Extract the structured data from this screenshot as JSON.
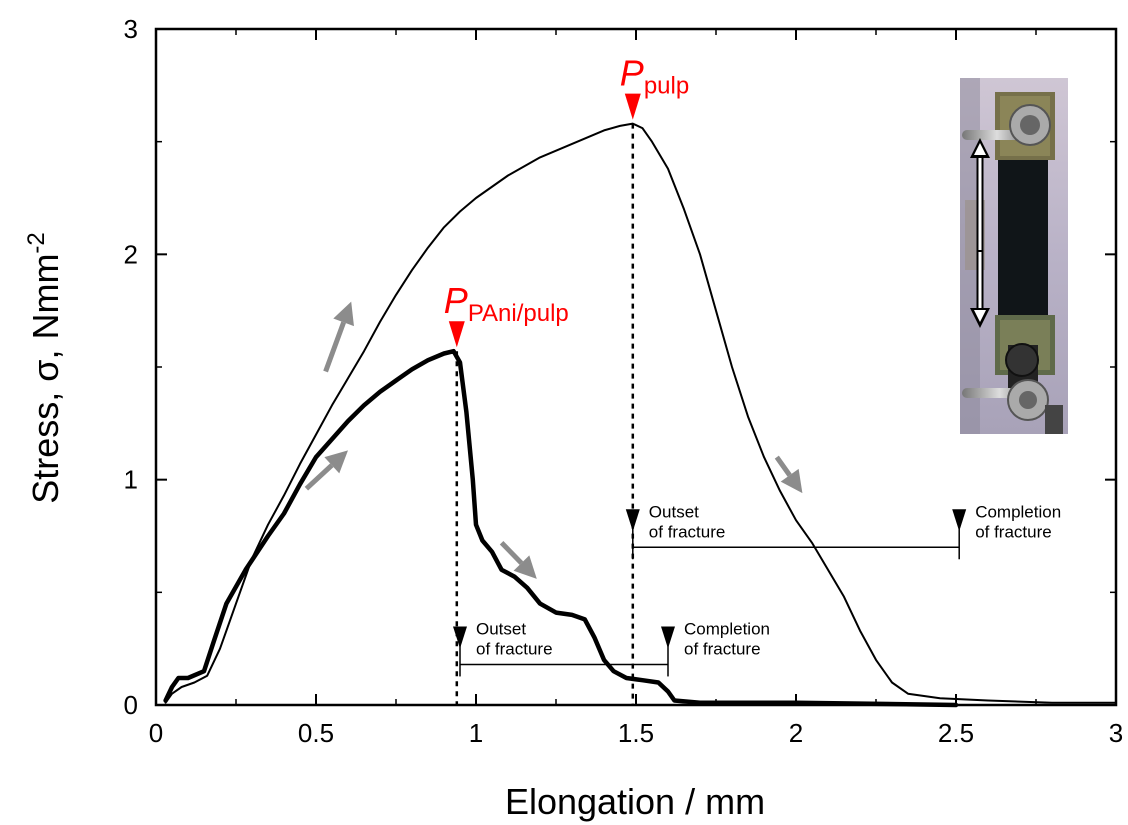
{
  "chart_data": {
    "type": "line",
    "xlabel": "Elongation / mm",
    "ylabel": {
      "prefix": "Stress, ",
      "symbol": "σ",
      "suffix": ", Nmm",
      "exponent": "-2"
    },
    "xlim": [
      0,
      3
    ],
    "ylim": [
      0,
      3
    ],
    "x_ticks": [
      "0",
      "0.5",
      "1",
      "1.5",
      "2",
      "2.5",
      "3"
    ],
    "y_ticks": [
      "0",
      "1",
      "2",
      "3"
    ],
    "grid": false,
    "legend": "none",
    "series": [
      {
        "id": "pulp",
        "color": "#000000",
        "points": [
          [
            0.03,
            0.01
          ],
          [
            0.05,
            0.05
          ],
          [
            0.08,
            0.08
          ],
          [
            0.12,
            0.1
          ],
          [
            0.16,
            0.13
          ],
          [
            0.2,
            0.25
          ],
          [
            0.25,
            0.45
          ],
          [
            0.3,
            0.65
          ],
          [
            0.35,
            0.8
          ],
          [
            0.4,
            0.93
          ],
          [
            0.45,
            1.07
          ],
          [
            0.5,
            1.2
          ],
          [
            0.55,
            1.33
          ],
          [
            0.6,
            1.45
          ],
          [
            0.65,
            1.57
          ],
          [
            0.7,
            1.7
          ],
          [
            0.75,
            1.82
          ],
          [
            0.8,
            1.93
          ],
          [
            0.85,
            2.03
          ],
          [
            0.9,
            2.12
          ],
          [
            0.95,
            2.19
          ],
          [
            1.0,
            2.25
          ],
          [
            1.1,
            2.35
          ],
          [
            1.2,
            2.43
          ],
          [
            1.3,
            2.49
          ],
          [
            1.4,
            2.55
          ],
          [
            1.45,
            2.57
          ],
          [
            1.49,
            2.58
          ],
          [
            1.52,
            2.56
          ],
          [
            1.55,
            2.5
          ],
          [
            1.6,
            2.38
          ],
          [
            1.65,
            2.2
          ],
          [
            1.7,
            2.0
          ],
          [
            1.75,
            1.75
          ],
          [
            1.8,
            1.5
          ],
          [
            1.85,
            1.28
          ],
          [
            1.9,
            1.1
          ],
          [
            1.95,
            0.95
          ],
          [
            2.0,
            0.82
          ],
          [
            2.05,
            0.72
          ],
          [
            2.1,
            0.6
          ],
          [
            2.15,
            0.48
          ],
          [
            2.2,
            0.33
          ],
          [
            2.25,
            0.2
          ],
          [
            2.3,
            0.1
          ],
          [
            2.35,
            0.05
          ],
          [
            2.45,
            0.03
          ],
          [
            2.6,
            0.02
          ],
          [
            2.8,
            0.01
          ],
          [
            3.0,
            0.01
          ]
        ]
      },
      {
        "id": "pani-pulp",
        "color": "#000000",
        "points": [
          [
            0.03,
            0.02
          ],
          [
            0.05,
            0.08
          ],
          [
            0.07,
            0.12
          ],
          [
            0.1,
            0.12
          ],
          [
            0.15,
            0.15
          ],
          [
            0.18,
            0.28
          ],
          [
            0.22,
            0.45
          ],
          [
            0.28,
            0.6
          ],
          [
            0.35,
            0.75
          ],
          [
            0.4,
            0.85
          ],
          [
            0.45,
            0.98
          ],
          [
            0.5,
            1.1
          ],
          [
            0.55,
            1.18
          ],
          [
            0.6,
            1.26
          ],
          [
            0.65,
            1.33
          ],
          [
            0.7,
            1.39
          ],
          [
            0.75,
            1.44
          ],
          [
            0.8,
            1.49
          ],
          [
            0.85,
            1.53
          ],
          [
            0.9,
            1.56
          ],
          [
            0.93,
            1.57
          ],
          [
            0.95,
            1.52
          ],
          [
            0.97,
            1.3
          ],
          [
            0.99,
            1.0
          ],
          [
            1.0,
            0.8
          ],
          [
            1.02,
            0.73
          ],
          [
            1.05,
            0.68
          ],
          [
            1.08,
            0.6
          ],
          [
            1.12,
            0.57
          ],
          [
            1.16,
            0.52
          ],
          [
            1.2,
            0.45
          ],
          [
            1.25,
            0.41
          ],
          [
            1.3,
            0.4
          ],
          [
            1.34,
            0.38
          ],
          [
            1.37,
            0.3
          ],
          [
            1.4,
            0.2
          ],
          [
            1.43,
            0.15
          ],
          [
            1.47,
            0.12
          ],
          [
            1.52,
            0.11
          ],
          [
            1.57,
            0.1
          ],
          [
            1.6,
            0.06
          ],
          [
            1.62,
            0.02
          ],
          [
            1.7,
            0.01
          ],
          [
            2.0,
            0.01
          ],
          [
            2.5,
            0.0
          ]
        ]
      }
    ],
    "peaks": [
      {
        "id": "pulp",
        "symbol": "P",
        "subscript": "pulp",
        "x": 1.49,
        "y": 2.58
      },
      {
        "id": "pani-pulp",
        "symbol": "P",
        "subscript": "PAni/pulp",
        "x": 0.94,
        "y": 1.57
      }
    ],
    "fracture_annotations": [
      {
        "id": "pulp-outset",
        "line1": "Outset",
        "line2": "of fracture",
        "x": 1.49,
        "y": 0.7
      },
      {
        "id": "pulp-completion",
        "line1": "Completion",
        "line2": "of fracture",
        "x": 2.51,
        "y": 0.7
      },
      {
        "id": "pani-outset",
        "line1": "Outset",
        "line2": "of fracture",
        "x": 0.95,
        "y": 0.18
      },
      {
        "id": "pani-completion",
        "line1": "Completion",
        "line2": "of fracture",
        "x": 1.6,
        "y": 0.18
      }
    ],
    "direction_arrows": [
      {
        "from": [
          0.53,
          1.48
        ],
        "to": [
          0.61,
          1.79
        ]
      },
      {
        "from": [
          0.47,
          0.96
        ],
        "to": [
          0.6,
          1.13
        ]
      },
      {
        "from": [
          1.08,
          0.72
        ],
        "to": [
          1.19,
          0.56
        ]
      },
      {
        "from": [
          1.94,
          1.1
        ],
        "to": [
          2.02,
          0.94
        ]
      }
    ],
    "inset_photo": "tensile-specimen-photo",
    "colors": {
      "peak_label": "#ff0000",
      "direction_arrow": "#8c8c8c"
    }
  }
}
